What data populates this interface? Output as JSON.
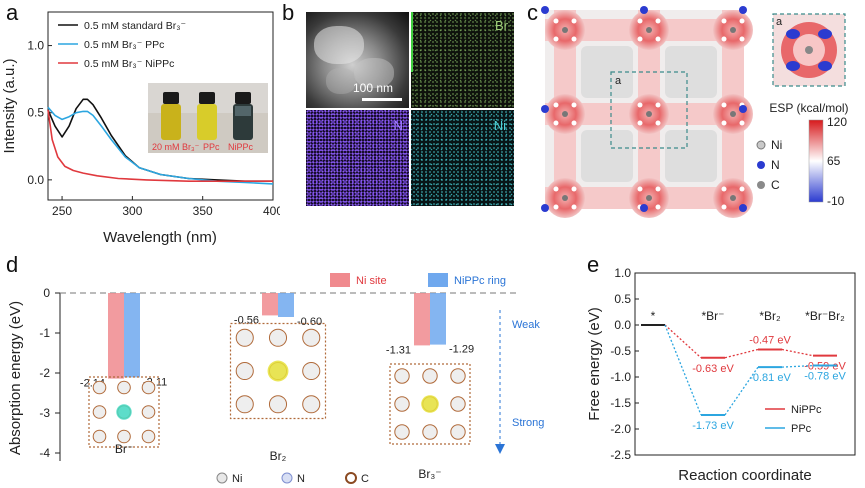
{
  "panels": [
    "a",
    "b",
    "c",
    "d",
    "e"
  ],
  "panel_a": {
    "xlabel": "Wavelength (nm)",
    "ylabel": "Intensity (a.u.)",
    "legend": [
      "0.5 mM standard Br₃⁻",
      "0.5 mM Br₃⁻ PPc",
      "0.5 mM Br₃⁻ NiPPc"
    ],
    "colors": [
      "#111111",
      "#2ca6e0",
      "#e0393e"
    ],
    "photo_labels": [
      "20 mM Br₃⁻",
      "PPc",
      "NiPPc"
    ],
    "xticks": [
      "250",
      "300",
      "350",
      "400"
    ],
    "yticks": [
      "0.0",
      "0.5",
      "1.0"
    ]
  },
  "panel_b": {
    "element_labels": [
      "Br",
      "N",
      "Ni"
    ],
    "scale_bar": "100 nm",
    "colors": {
      "br": "#9fcf7a",
      "n": "#8a5cf0",
      "ni": "#4fd2d8"
    }
  },
  "panel_c": {
    "inset_label": "a",
    "cell_label": "a",
    "esp_title": "ESP (kcal/mol)",
    "esp_ticks": [
      "120",
      "65",
      "-10"
    ],
    "atom_legend": [
      "Ni",
      "N",
      "C"
    ]
  },
  "panel_d": {
    "ylabel": "Absorption energy (eV)",
    "legend": [
      "Ni site",
      "NiPPc ring"
    ],
    "yticks": [
      "0",
      "-1",
      "-2",
      "-3",
      "-4"
    ],
    "weak": "Weak",
    "strong": "Strong",
    "groups": [
      {
        "name": "Br⁻",
        "ni": -2.14,
        "ring": -2.11,
        "ni_label": "-2.14",
        "ring_label": "-2.11"
      },
      {
        "name": "Br₂",
        "ni": -0.56,
        "ring": -0.6,
        "ni_label": "-0.56",
        "ring_label": "-0.60"
      },
      {
        "name": "Br₃⁻",
        "ni": -1.31,
        "ring": -1.29,
        "ni_label": "-1.31",
        "ring_label": "-1.29"
      }
    ],
    "atom_legend": [
      "Ni",
      "N",
      "C"
    ]
  },
  "chart_data": [
    {
      "type": "line",
      "title": "",
      "xlabel": "Wavelength (nm)",
      "ylabel": "Intensity (a.u.)",
      "xlim": [
        240,
        400
      ],
      "ylim": [
        -0.15,
        1.25
      ],
      "legend_position": "top-left",
      "series": [
        {
          "name": "0.5 mM standard Br₃⁻",
          "x": [
            240,
            245,
            250,
            255,
            260,
            265,
            268,
            272,
            278,
            285,
            295,
            305,
            320,
            340,
            360,
            380,
            400
          ],
          "y": [
            0.52,
            0.4,
            0.32,
            0.4,
            0.53,
            0.6,
            0.6,
            0.56,
            0.46,
            0.33,
            0.18,
            0.09,
            0.04,
            0.01,
            0.0,
            -0.01,
            -0.01
          ]
        },
        {
          "name": "0.5 mM Br₃⁻ PPc",
          "x": [
            240,
            245,
            250,
            255,
            260,
            265,
            268,
            272,
            278,
            285,
            295,
            305,
            320,
            340,
            360,
            380,
            400
          ],
          "y": [
            0.54,
            0.48,
            0.45,
            0.47,
            0.5,
            0.51,
            0.51,
            0.48,
            0.4,
            0.3,
            0.17,
            0.09,
            0.04,
            0.01,
            -0.01,
            -0.02,
            -0.03
          ]
        },
        {
          "name": "0.5 mM Br₃⁻ NiPPc",
          "x": [
            240,
            243,
            247,
            252,
            258,
            265,
            275,
            290,
            310,
            340,
            370,
            400
          ],
          "y": [
            0.52,
            0.3,
            0.17,
            0.1,
            0.07,
            0.05,
            0.03,
            0.01,
            0.0,
            -0.01,
            -0.01,
            -0.01
          ]
        }
      ]
    },
    {
      "type": "bar",
      "title": "",
      "xlabel": "",
      "ylabel": "Absorption energy (eV)",
      "ylim": [
        -4,
        0
      ],
      "categories": [
        "Br⁻",
        "Br₂",
        "Br₃⁻"
      ],
      "series": [
        {
          "name": "Ni site",
          "values": [
            -2.14,
            -0.56,
            -1.31
          ]
        },
        {
          "name": "NiPPc ring",
          "values": [
            -2.11,
            -0.6,
            -1.29
          ]
        }
      ]
    },
    {
      "type": "line",
      "title": "",
      "xlabel": "Reaction coordinate",
      "ylabel": "Free energy (eV)",
      "ylim": [
        -2.5,
        1.0
      ],
      "categories": [
        "*",
        "*Br⁻",
        "*Br₂",
        "*Br⁻Br₂"
      ],
      "yticks": [
        "1.0",
        "0.5",
        "0.0",
        "-0.5",
        "-1.0",
        "-1.5",
        "-2.0",
        "-2.5"
      ],
      "legend_position": "bottom-right",
      "series": [
        {
          "name": "NiPPc",
          "values": [
            0,
            -0.63,
            -0.47,
            -0.59
          ],
          "labels": [
            "",
            "-0.63 eV",
            "-0.47 eV",
            "-0.59 eV"
          ]
        },
        {
          "name": "PPc",
          "values": [
            0,
            -1.73,
            -0.81,
            -0.78
          ],
          "labels": [
            "",
            "-1.73 eV",
            "-0.81 eV",
            "-0.78 eV"
          ]
        }
      ]
    }
  ]
}
